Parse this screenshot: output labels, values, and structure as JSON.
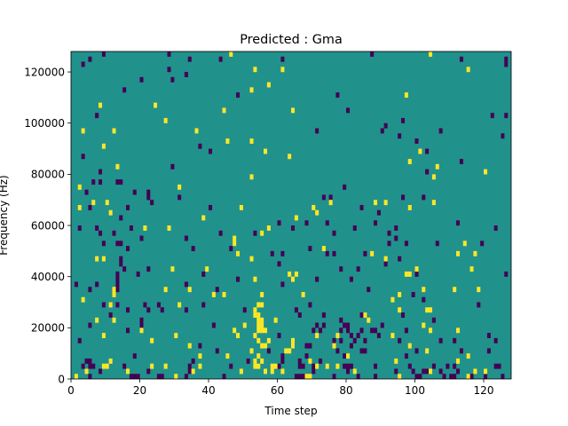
{
  "chart_data": {
    "type": "heatmap",
    "title": "Predicted : Gma",
    "xlabel": "Time step",
    "ylabel": "Frequency (Hz)",
    "xlim": [
      0,
      128
    ],
    "ylim": [
      0,
      128000
    ],
    "x_ticks": [
      0,
      20,
      40,
      60,
      80,
      100,
      120
    ],
    "y_ticks": [
      0,
      20000,
      40000,
      60000,
      80000,
      100000,
      120000
    ],
    "grid": false,
    "legend": "none",
    "n_time_steps": 128,
    "n_freq_bins": 64,
    "colors": {
      "background": "#21918c",
      "high": "#fde725",
      "low": "#440154"
    },
    "yellow_cells": [
      [
        46,
        63
      ],
      [
        53,
        60
      ],
      [
        61,
        60
      ],
      [
        104,
        63
      ],
      [
        115,
        60
      ],
      [
        57,
        57
      ],
      [
        52,
        56
      ],
      [
        97,
        55
      ],
      [
        8,
        53
      ],
      [
        24,
        53
      ],
      [
        44,
        52
      ],
      [
        64,
        52
      ],
      [
        27,
        50
      ],
      [
        3,
        48
      ],
      [
        12,
        48
      ],
      [
        36,
        48
      ],
      [
        45,
        46
      ],
      [
        52,
        46
      ],
      [
        56,
        44
      ],
      [
        9,
        45
      ],
      [
        101,
        44
      ],
      [
        63,
        43
      ],
      [
        98,
        42
      ],
      [
        106,
        41
      ],
      [
        13,
        41
      ],
      [
        52,
        39
      ],
      [
        105,
        39
      ],
      [
        120,
        40
      ],
      [
        2,
        37
      ],
      [
        31,
        37
      ],
      [
        6,
        34
      ],
      [
        10,
        34
      ],
      [
        75,
        34
      ],
      [
        88,
        34
      ],
      [
        105,
        34
      ],
      [
        91,
        34
      ],
      [
        49,
        33
      ],
      [
        98,
        33
      ],
      [
        71,
        32
      ],
      [
        11,
        32
      ],
      [
        2,
        33
      ],
      [
        65,
        31
      ],
      [
        38,
        31
      ],
      [
        21,
        29
      ],
      [
        28,
        29
      ],
      [
        57,
        29
      ],
      [
        47,
        26
      ],
      [
        47,
        27
      ],
      [
        55,
        28
      ],
      [
        52,
        23
      ],
      [
        73,
        25
      ],
      [
        114,
        26
      ],
      [
        117,
        24
      ],
      [
        9,
        23
      ],
      [
        7,
        23
      ],
      [
        48,
        24
      ],
      [
        87,
        24
      ],
      [
        112,
        24
      ],
      [
        91,
        23
      ],
      [
        63,
        20
      ],
      [
        65,
        20
      ],
      [
        100,
        21
      ],
      [
        29,
        21
      ],
      [
        39,
        21
      ],
      [
        116,
        21
      ],
      [
        53,
        19
      ],
      [
        64,
        19
      ],
      [
        12,
        17
      ],
      [
        12,
        16
      ],
      [
        27,
        17
      ],
      [
        34,
        17
      ],
      [
        44,
        16
      ],
      [
        55,
        16
      ],
      [
        67,
        16
      ],
      [
        118,
        17
      ],
      [
        102,
        17
      ],
      [
        93,
        15
      ],
      [
        95,
        16
      ],
      [
        3,
        15
      ],
      [
        11,
        14
      ],
      [
        41,
        16
      ],
      [
        54,
        14
      ],
      [
        55,
        14
      ],
      [
        31,
        14
      ],
      [
        53,
        13
      ],
      [
        54,
        12
      ],
      [
        54,
        11
      ],
      [
        54,
        10
      ],
      [
        55,
        10
      ],
      [
        55,
        11
      ],
      [
        53,
        12
      ],
      [
        12,
        11
      ],
      [
        7,
        11
      ],
      [
        50,
        10
      ],
      [
        59,
        11
      ],
      [
        86,
        11
      ],
      [
        102,
        10
      ],
      [
        54,
        9
      ],
      [
        55,
        9
      ],
      [
        56,
        9
      ],
      [
        20,
        9
      ],
      [
        47,
        9
      ],
      [
        104,
        9
      ],
      [
        112,
        9
      ],
      [
        9,
        8
      ],
      [
        30,
        8
      ],
      [
        53,
        8
      ],
      [
        54,
        7
      ],
      [
        23,
        7
      ],
      [
        48,
        8
      ],
      [
        71,
        8
      ],
      [
        77,
        8
      ],
      [
        93,
        8
      ],
      [
        57,
        7
      ],
      [
        55,
        6
      ],
      [
        56,
        6
      ],
      [
        34,
        6
      ],
      [
        76,
        6
      ],
      [
        98,
        6
      ],
      [
        62,
        5
      ],
      [
        63,
        5
      ],
      [
        103,
        5
      ],
      [
        52,
        5
      ],
      [
        45,
        4
      ],
      [
        54,
        4
      ],
      [
        80,
        4
      ],
      [
        37,
        4
      ],
      [
        11,
        3
      ],
      [
        53,
        3
      ],
      [
        55,
        3
      ],
      [
        112,
        3
      ],
      [
        69,
        3
      ],
      [
        9,
        2
      ],
      [
        10,
        2
      ],
      [
        23,
        2
      ],
      [
        27,
        2
      ],
      [
        37,
        2
      ],
      [
        53,
        2
      ],
      [
        54,
        2
      ],
      [
        71,
        2
      ],
      [
        74,
        2
      ],
      [
        77,
        2
      ],
      [
        59,
        2
      ],
      [
        4,
        1
      ],
      [
        35,
        1
      ],
      [
        49,
        1
      ],
      [
        56,
        1
      ],
      [
        61,
        1
      ],
      [
        82,
        1
      ],
      [
        104,
        1
      ],
      [
        117,
        1
      ],
      [
        120,
        1
      ],
      [
        16,
        1
      ],
      [
        1,
        0
      ],
      [
        30,
        0
      ],
      [
        69,
        0
      ],
      [
        95,
        0
      ],
      [
        115,
        0
      ],
      [
        68,
        0
      ],
      [
        58,
        2
      ],
      [
        58,
        1
      ],
      [
        94,
        3
      ],
      [
        115,
        4
      ],
      [
        64,
        6
      ],
      [
        64,
        7
      ],
      [
        85,
        12
      ],
      [
        95,
        13
      ],
      [
        97,
        20
      ],
      [
        98,
        20
      ],
      [
        103,
        13
      ],
      [
        104,
        13
      ],
      [
        111,
        17
      ],
      [
        70,
        33
      ]
    ],
    "purple_cells": [
      [
        9,
        63
      ],
      [
        28,
        63
      ],
      [
        87,
        63
      ],
      [
        5,
        62
      ],
      [
        34,
        62
      ],
      [
        43,
        62
      ],
      [
        61,
        62
      ],
      [
        113,
        62
      ],
      [
        126,
        62
      ],
      [
        3,
        61
      ],
      [
        126,
        61
      ],
      [
        28,
        60
      ],
      [
        33,
        59
      ],
      [
        20,
        58
      ],
      [
        29,
        58
      ],
      [
        48,
        55
      ],
      [
        77,
        55
      ],
      [
        15,
        56
      ],
      [
        7,
        51
      ],
      [
        91,
        49
      ],
      [
        80,
        52
      ],
      [
        126,
        51
      ],
      [
        122,
        51
      ],
      [
        90,
        48
      ],
      [
        107,
        48
      ],
      [
        96,
        50
      ],
      [
        100,
        46
      ],
      [
        125,
        47
      ],
      [
        95,
        47
      ],
      [
        71,
        48
      ],
      [
        40,
        44
      ],
      [
        37,
        45
      ],
      [
        103,
        44
      ],
      [
        113,
        42
      ],
      [
        3,
        43
      ],
      [
        29,
        41
      ],
      [
        8,
        40
      ],
      [
        103,
        40
      ],
      [
        6,
        38
      ],
      [
        8,
        38
      ],
      [
        13,
        38
      ],
      [
        14,
        38
      ],
      [
        79,
        37
      ],
      [
        4,
        36
      ],
      [
        22,
        36
      ],
      [
        18,
        36
      ],
      [
        22,
        35
      ],
      [
        31,
        35
      ],
      [
        75,
        35
      ],
      [
        73,
        35
      ],
      [
        96,
        35
      ],
      [
        102,
        35
      ],
      [
        23,
        34
      ],
      [
        40,
        33
      ],
      [
        5,
        33
      ],
      [
        16,
        33
      ],
      [
        84,
        33
      ],
      [
        89,
        32
      ],
      [
        14,
        31
      ],
      [
        17,
        29
      ],
      [
        12,
        28
      ],
      [
        7,
        29
      ],
      [
        8,
        28
      ],
      [
        43,
        28
      ],
      [
        76,
        28
      ],
      [
        82,
        29
      ],
      [
        92,
        28
      ],
      [
        94,
        29
      ],
      [
        123,
        29
      ],
      [
        60,
        30
      ],
      [
        64,
        29
      ],
      [
        68,
        30
      ],
      [
        74,
        30
      ],
      [
        88,
        30
      ],
      [
        112,
        30
      ],
      [
        2,
        29
      ],
      [
        13,
        26
      ],
      [
        14,
        26
      ],
      [
        20,
        27
      ],
      [
        33,
        27
      ],
      [
        9,
        26
      ],
      [
        16,
        25
      ],
      [
        35,
        25
      ],
      [
        46,
        25
      ],
      [
        53,
        28
      ],
      [
        58,
        24
      ],
      [
        61,
        24
      ],
      [
        69,
        25
      ],
      [
        74,
        24
      ],
      [
        76,
        24
      ],
      [
        85,
        24
      ],
      [
        92,
        26
      ],
      [
        94,
        27
      ],
      [
        97,
        26
      ],
      [
        106,
        26
      ],
      [
        119,
        26
      ],
      [
        22,
        21
      ],
      [
        14,
        23
      ],
      [
        14,
        22
      ],
      [
        15,
        21
      ],
      [
        60,
        22
      ],
      [
        78,
        21
      ],
      [
        100,
        20
      ],
      [
        126,
        20
      ],
      [
        13,
        20
      ],
      [
        19,
        20
      ],
      [
        38,
        20
      ],
      [
        48,
        19
      ],
      [
        71,
        19
      ],
      [
        81,
        19
      ],
      [
        83,
        21
      ],
      [
        91,
        22
      ],
      [
        95,
        23
      ],
      [
        7,
        18
      ],
      [
        13,
        19
      ],
      [
        13,
        18
      ],
      [
        1,
        18
      ],
      [
        5,
        17
      ],
      [
        33,
        18
      ],
      [
        42,
        17
      ],
      [
        61,
        18
      ],
      [
        86,
        17
      ],
      [
        99,
        16
      ],
      [
        102,
        15
      ],
      [
        118,
        14
      ],
      [
        9,
        14
      ],
      [
        13,
        17
      ],
      [
        13,
        14
      ],
      [
        16,
        13
      ],
      [
        22,
        13
      ],
      [
        11,
        12
      ],
      [
        21,
        14
      ],
      [
        25,
        14
      ],
      [
        26,
        13
      ],
      [
        66,
        12
      ],
      [
        69,
        14
      ],
      [
        73,
        12
      ],
      [
        78,
        11
      ],
      [
        5,
        10
      ],
      [
        20,
        11
      ],
      [
        33,
        13
      ],
      [
        38,
        14
      ],
      [
        50,
        13
      ],
      [
        65,
        13
      ],
      [
        71,
        10
      ],
      [
        73,
        10
      ],
      [
        79,
        10
      ],
      [
        80,
        9
      ],
      [
        84,
        12
      ],
      [
        90,
        10
      ],
      [
        96,
        12
      ],
      [
        70,
        9
      ],
      [
        72,
        9
      ],
      [
        80,
        10
      ],
      [
        84,
        9
      ],
      [
        87,
        9
      ],
      [
        88,
        9
      ],
      [
        97,
        9
      ],
      [
        89,
        8
      ],
      [
        105,
        11
      ],
      [
        81,
        8
      ],
      [
        82,
        7
      ],
      [
        83,
        8
      ],
      [
        95,
        7
      ],
      [
        111,
        7
      ],
      [
        2,
        7
      ],
      [
        16,
        9
      ],
      [
        20,
        10
      ],
      [
        41,
        10
      ],
      [
        78,
        9
      ],
      [
        60,
        8
      ],
      [
        68,
        6
      ],
      [
        69,
        6
      ],
      [
        76,
        7
      ],
      [
        78,
        7
      ],
      [
        81,
        6
      ],
      [
        85,
        7
      ],
      [
        107,
        7
      ],
      [
        123,
        7
      ],
      [
        121,
        8
      ],
      [
        37,
        6
      ],
      [
        77,
        5
      ],
      [
        85,
        5
      ],
      [
        113,
        5
      ],
      [
        121,
        5
      ],
      [
        68,
        4
      ],
      [
        79,
        4
      ],
      [
        84,
        5
      ],
      [
        42,
        5
      ],
      [
        57,
        5
      ],
      [
        61,
        4
      ],
      [
        97,
        4
      ],
      [
        100,
        5
      ],
      [
        4,
        3
      ],
      [
        5,
        3
      ],
      [
        18,
        4
      ],
      [
        35,
        3
      ],
      [
        51,
        3
      ],
      [
        61,
        3
      ],
      [
        66,
        3
      ],
      [
        72,
        3
      ],
      [
        70,
        2
      ],
      [
        3,
        2
      ],
      [
        5,
        2
      ],
      [
        6,
        2
      ],
      [
        15,
        2
      ],
      [
        34,
        2
      ],
      [
        46,
        2
      ],
      [
        60,
        2
      ],
      [
        66,
        2
      ],
      [
        67,
        2
      ],
      [
        79,
        2
      ],
      [
        80,
        2
      ],
      [
        81,
        2
      ],
      [
        88,
        2
      ],
      [
        98,
        2
      ],
      [
        105,
        2
      ],
      [
        109,
        2
      ],
      [
        111,
        2
      ],
      [
        123,
        2
      ],
      [
        124,
        2
      ],
      [
        8,
        1
      ],
      [
        22,
        1
      ],
      [
        34,
        1
      ],
      [
        70,
        1
      ],
      [
        94,
        1
      ],
      [
        99,
        1
      ],
      [
        102,
        1
      ],
      [
        103,
        1
      ],
      [
        107,
        1
      ],
      [
        112,
        1
      ],
      [
        5,
        0
      ],
      [
        25,
        0
      ],
      [
        26,
        0
      ],
      [
        33,
        0
      ],
      [
        44,
        0
      ],
      [
        88,
        0
      ],
      [
        100,
        0
      ],
      [
        101,
        0
      ],
      [
        108,
        0
      ],
      [
        120,
        0
      ],
      [
        125,
        0
      ],
      [
        65,
        0
      ],
      [
        66,
        0
      ],
      [
        67,
        0
      ],
      [
        76,
        0
      ],
      [
        80,
        1
      ],
      [
        83,
        0
      ],
      [
        110,
        0
      ],
      [
        111,
        0
      ],
      [
        116,
        0
      ],
      [
        17,
        0
      ],
      [
        18,
        0
      ],
      [
        19,
        0
      ]
    ]
  }
}
